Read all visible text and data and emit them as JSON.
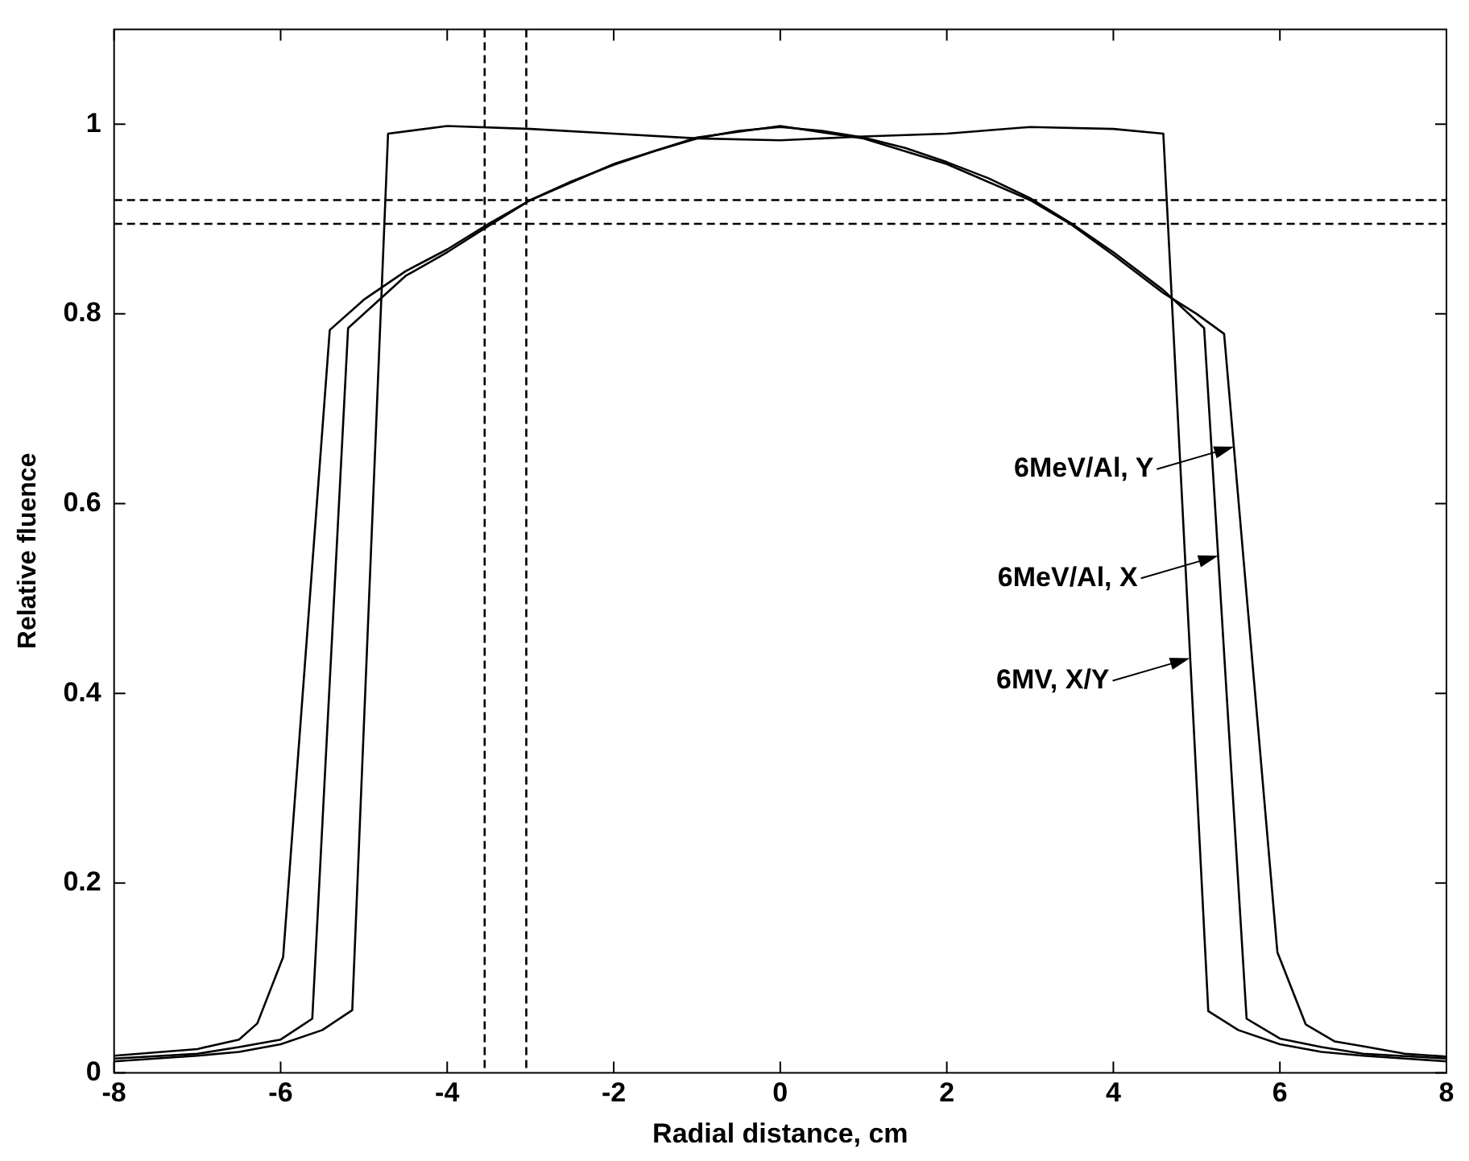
{
  "chart_data": {
    "type": "line",
    "xlabel": "Radial distance, cm",
    "ylabel": "Relative fluence",
    "xlim": [
      -8,
      8
    ],
    "xticks": [
      -8,
      -6,
      -4,
      -2,
      0,
      2,
      4,
      6,
      8
    ],
    "ylim": [
      0,
      1.1
    ],
    "yticks": [
      0,
      0.2,
      0.4,
      0.6,
      0.8,
      1
    ],
    "grid": false,
    "legend": false,
    "marker": "none",
    "line_style": "solid",
    "series": [
      {
        "color": "#000000",
        "x": [
          -8,
          -7.5,
          -7,
          -6.5,
          -6,
          -5.5,
          -5.14,
          -4.71,
          -4,
          -3,
          -2,
          -1,
          0,
          1,
          2,
          3,
          4,
          4.6,
          5.14,
          5.5,
          6,
          6.5,
          7,
          7.5,
          8
        ],
        "values": [
          0.012,
          0.015,
          0.018,
          0.022,
          0.03,
          0.045,
          0.066,
          0.99,
          0.998,
          0.995,
          0.99,
          0.985,
          0.983,
          0.987,
          0.99,
          0.997,
          0.995,
          0.99,
          0.065,
          0.045,
          0.03,
          0.022,
          0.018,
          0.015,
          0.012
        ]
      },
      {
        "color": "#000000",
        "x": [
          -8,
          -7,
          -6.5,
          -6,
          -5.62,
          -5.19,
          -4.5,
          -4,
          -3.5,
          -3,
          -2.5,
          -2,
          -1.5,
          -1,
          -0.5,
          0,
          0.5,
          1,
          1.5,
          2,
          2.5,
          3,
          3.5,
          4,
          4.6,
          5.09,
          5.6,
          6,
          6.5,
          7,
          8
        ],
        "values": [
          0.015,
          0.02,
          0.027,
          0.035,
          0.057,
          0.785,
          0.84,
          0.865,
          0.893,
          0.92,
          0.94,
          0.957,
          0.972,
          0.985,
          0.993,
          0.997,
          0.993,
          0.986,
          0.975,
          0.96,
          0.943,
          0.922,
          0.895,
          0.865,
          0.825,
          0.785,
          0.057,
          0.036,
          0.027,
          0.02,
          0.015
        ]
      },
      {
        "color": "#000000",
        "x": [
          -8,
          -7,
          -6.5,
          -6.28,
          -5.97,
          -5.41,
          -5,
          -4.5,
          -4,
          -3.5,
          -3,
          -2,
          -1,
          0,
          1,
          2,
          3,
          3.5,
          4,
          4.6,
          5,
          5.33,
          5.97,
          6.31,
          6.66,
          7,
          7.5,
          8
        ],
        "values": [
          0.018,
          0.025,
          0.035,
          0.052,
          0.122,
          0.783,
          0.815,
          0.845,
          0.868,
          0.895,
          0.92,
          0.958,
          0.986,
          0.998,
          0.985,
          0.958,
          0.92,
          0.894,
          0.862,
          0.822,
          0.8,
          0.779,
          0.127,
          0.051,
          0.033,
          0.028,
          0.02,
          0.017
        ]
      }
    ],
    "ref_lines": [
      {
        "axis": "x",
        "value": -3.55,
        "color": "#000000",
        "line_style": "dashed"
      },
      {
        "axis": "x",
        "value": -3.05,
        "color": "#000000",
        "line_style": "dashed"
      },
      {
        "axis": "y",
        "value": 0.92,
        "color": "#000000",
        "line_style": "dashed"
      },
      {
        "axis": "y",
        "value": 0.895,
        "color": "#000000",
        "line_style": "dashed"
      }
    ],
    "annotations": [
      {
        "text": "6MeV/Al, Y",
        "x": 5.45,
        "y": 0.66
      },
      {
        "text": "6MeV/Al, X",
        "x": 5.26,
        "y": 0.545
      },
      {
        "text": "6MV, X/Y",
        "x": 4.92,
        "y": 0.437
      }
    ]
  }
}
